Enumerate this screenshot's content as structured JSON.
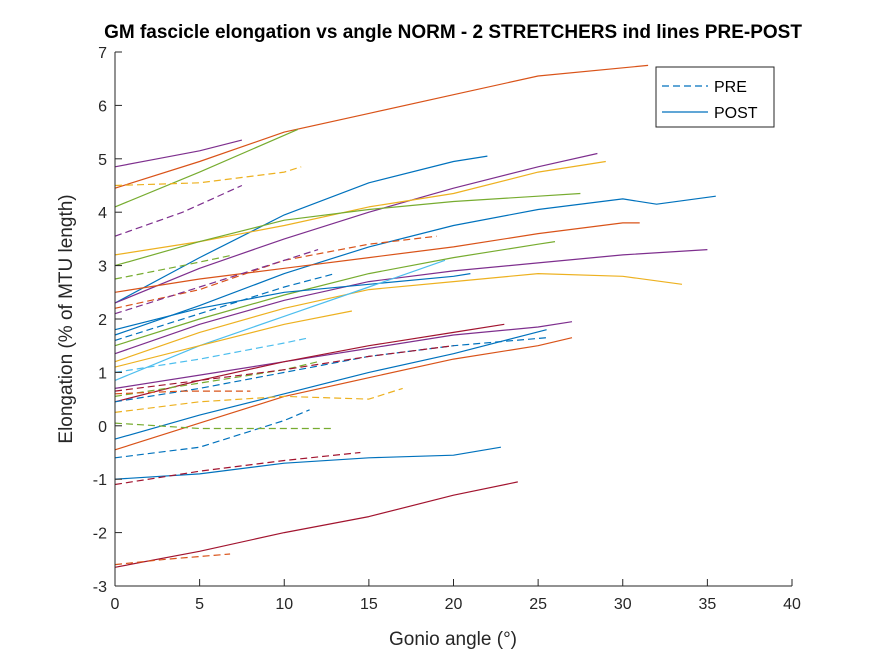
{
  "chart_data": {
    "type": "line",
    "title": "GM fascicle elongation vs angle NORM - 2 STRETCHERS ind lines PRE-POST",
    "xlabel": "Gonio angle (°)",
    "ylabel": "Elongation (% of MTU length)",
    "xlim": [
      0,
      40
    ],
    "ylim": [
      -3,
      7
    ],
    "xticks": [
      "0",
      "5",
      "10",
      "15",
      "20",
      "25",
      "30",
      "35",
      "40"
    ],
    "yticks": [
      "-3",
      "-2",
      "-1",
      "0",
      "1",
      "2",
      "3",
      "4",
      "5",
      "6",
      "7"
    ],
    "grid": false,
    "legend_position": "top-right",
    "legend": [
      {
        "label": "PRE",
        "style": "dashed"
      },
      {
        "label": "POST",
        "style": "solid"
      }
    ],
    "series": [
      {
        "color": "#D95319",
        "style": "solid",
        "x": [
          0,
          5,
          10,
          15,
          20,
          25,
          31.5
        ],
        "y": [
          4.45,
          4.95,
          5.5,
          5.85,
          6.2,
          6.55,
          6.75
        ]
      },
      {
        "color": "#7E2F8E",
        "style": "solid",
        "x": [
          0,
          2.5,
          5,
          7.5
        ],
        "y": [
          4.85,
          5.0,
          5.15,
          5.35
        ]
      },
      {
        "color": "#77AC30",
        "style": "solid",
        "x": [
          0,
          5,
          10.8
        ],
        "y": [
          4.1,
          4.75,
          5.55
        ]
      },
      {
        "color": "#0072BD",
        "style": "solid",
        "x": [
          0,
          5,
          10,
          15,
          20,
          22
        ],
        "y": [
          2.3,
          3.15,
          3.95,
          4.55,
          4.95,
          5.05
        ]
      },
      {
        "color": "#7E2F8E",
        "style": "solid",
        "x": [
          0,
          5,
          10,
          15,
          20,
          25,
          28.5
        ],
        "y": [
          2.3,
          2.95,
          3.5,
          4.0,
          4.45,
          4.85,
          5.1
        ]
      },
      {
        "color": "#EDB120",
        "style": "solid",
        "x": [
          0,
          5,
          10,
          15,
          20,
          25,
          29
        ],
        "y": [
          3.2,
          3.45,
          3.75,
          4.1,
          4.35,
          4.75,
          4.95
        ]
      },
      {
        "color": "#77AC30",
        "style": "solid",
        "x": [
          0,
          5,
          10,
          15,
          20,
          25,
          27.5
        ],
        "y": [
          3.0,
          3.45,
          3.85,
          4.05,
          4.2,
          4.3,
          4.35
        ]
      },
      {
        "color": "#0072BD",
        "style": "solid",
        "x": [
          0,
          5,
          10,
          15,
          20,
          25,
          30,
          32,
          35.5
        ],
        "y": [
          1.7,
          2.25,
          2.85,
          3.35,
          3.75,
          4.05,
          4.25,
          4.15,
          4.3
        ]
      },
      {
        "color": "#D95319",
        "style": "solid",
        "x": [
          0,
          5,
          10,
          15,
          20,
          25,
          30,
          31
        ],
        "y": [
          2.5,
          2.75,
          2.95,
          3.15,
          3.35,
          3.6,
          3.8,
          3.8
        ]
      },
      {
        "color": "#77AC30",
        "style": "solid",
        "x": [
          0,
          5,
          10,
          15,
          20,
          25,
          26
        ],
        "y": [
          1.5,
          2.0,
          2.45,
          2.85,
          3.15,
          3.4,
          3.45
        ]
      },
      {
        "color": "#7E2F8E",
        "style": "solid",
        "x": [
          0,
          5,
          10,
          15,
          20,
          25,
          30,
          35
        ],
        "y": [
          1.35,
          1.9,
          2.35,
          2.7,
          2.9,
          3.05,
          3.2,
          3.3
        ]
      },
      {
        "color": "#0072BD",
        "style": "solid",
        "x": [
          0,
          5,
          10,
          15,
          20,
          21
        ],
        "y": [
          1.8,
          2.2,
          2.5,
          2.65,
          2.8,
          2.85
        ]
      },
      {
        "color": "#EDB120",
        "style": "solid",
        "x": [
          0,
          5,
          10,
          15,
          20,
          25,
          30,
          33.5
        ],
        "y": [
          1.2,
          1.75,
          2.2,
          2.55,
          2.7,
          2.85,
          2.8,
          2.65
        ]
      },
      {
        "color": "#4DBEEE",
        "style": "solid",
        "x": [
          0,
          5,
          10,
          15,
          19.5
        ],
        "y": [
          0.85,
          1.5,
          2.05,
          2.6,
          3.1
        ]
      },
      {
        "color": "#EDB120",
        "style": "solid",
        "x": [
          0,
          5,
          10,
          14
        ],
        "y": [
          1.1,
          1.5,
          1.9,
          2.15
        ]
      },
      {
        "color": "#7E2F8E",
        "style": "solid",
        "x": [
          0,
          5,
          10,
          15,
          20,
          25,
          27
        ],
        "y": [
          0.7,
          0.95,
          1.2,
          1.45,
          1.7,
          1.85,
          1.95
        ]
      },
      {
        "color": "#A2142F",
        "style": "solid",
        "x": [
          0,
          5,
          10,
          15,
          20,
          23
        ],
        "y": [
          0.45,
          0.85,
          1.2,
          1.5,
          1.75,
          1.9
        ]
      },
      {
        "color": "#0072BD",
        "style": "solid",
        "x": [
          0,
          5,
          10,
          15,
          20,
          25.5
        ],
        "y": [
          -0.25,
          0.2,
          0.6,
          1.0,
          1.35,
          1.8
        ]
      },
      {
        "color": "#D95319",
        "style": "solid",
        "x": [
          0,
          5,
          10,
          15,
          20,
          25,
          27
        ],
        "y": [
          -0.45,
          0.05,
          0.55,
          0.9,
          1.25,
          1.5,
          1.65
        ]
      },
      {
        "color": "#0072BD",
        "style": "solid",
        "x": [
          0,
          5,
          10,
          15,
          20,
          22.8
        ],
        "y": [
          -1.0,
          -0.9,
          -0.7,
          -0.6,
          -0.55,
          -0.4
        ]
      },
      {
        "color": "#A2142F",
        "style": "solid",
        "x": [
          0,
          5,
          10,
          15,
          20,
          23.8
        ],
        "y": [
          -2.65,
          -2.35,
          -2.0,
          -1.7,
          -1.3,
          -1.05
        ]
      },
      {
        "color": "#EDB120",
        "style": "dashed",
        "x": [
          0,
          5,
          10,
          11
        ],
        "y": [
          4.5,
          4.55,
          4.75,
          4.85
        ]
      },
      {
        "color": "#7E2F8E",
        "style": "dashed",
        "x": [
          0,
          4,
          7.5
        ],
        "y": [
          3.55,
          4.0,
          4.5
        ]
      },
      {
        "color": "#D95319",
        "style": "dashed",
        "x": [
          0,
          5,
          10,
          15,
          19
        ],
        "y": [
          2.2,
          2.55,
          3.1,
          3.4,
          3.55
        ]
      },
      {
        "color": "#77AC30",
        "style": "dashed",
        "x": [
          0,
          4,
          7
        ],
        "y": [
          2.75,
          3.0,
          3.2
        ]
      },
      {
        "color": "#7E2F8E",
        "style": "dashed",
        "x": [
          0,
          5,
          10,
          12
        ],
        "y": [
          2.1,
          2.6,
          3.1,
          3.3
        ]
      },
      {
        "color": "#0072BD",
        "style": "dashed",
        "x": [
          0,
          5,
          10,
          13
        ],
        "y": [
          1.6,
          2.1,
          2.6,
          2.85
        ]
      },
      {
        "color": "#4DBEEE",
        "style": "dashed",
        "x": [
          0,
          5,
          10,
          11.5
        ],
        "y": [
          1.0,
          1.25,
          1.55,
          1.65
        ]
      },
      {
        "color": "#77AC30",
        "style": "dashed",
        "x": [
          0,
          5,
          10,
          12
        ],
        "y": [
          0.55,
          0.8,
          1.05,
          1.2
        ]
      },
      {
        "color": "#0072BD",
        "style": "dashed",
        "x": [
          0,
          5,
          10,
          15,
          20,
          25.5
        ],
        "y": [
          0.45,
          0.7,
          1.0,
          1.3,
          1.5,
          1.65
        ]
      },
      {
        "color": "#A2142F",
        "style": "dashed",
        "x": [
          0,
          5,
          10,
          15,
          20
        ],
        "y": [
          0.65,
          0.85,
          1.05,
          1.3,
          1.5
        ]
      },
      {
        "color": "#EDB120",
        "style": "dashed",
        "x": [
          0,
          5,
          10,
          15,
          17
        ],
        "y": [
          0.25,
          0.45,
          0.55,
          0.5,
          0.7
        ]
      },
      {
        "color": "#D95319",
        "style": "dashed",
        "x": [
          0,
          4,
          8
        ],
        "y": [
          0.6,
          0.65,
          0.65
        ]
      },
      {
        "color": "#0072BD",
        "style": "dashed",
        "x": [
          0,
          5,
          10,
          11.5
        ],
        "y": [
          -0.6,
          -0.4,
          0.1,
          0.3
        ]
      },
      {
        "color": "#77AC30",
        "style": "dashed",
        "x": [
          0,
          5,
          10,
          12.8
        ],
        "y": [
          0.05,
          -0.05,
          -0.05,
          -0.05
        ]
      },
      {
        "color": "#A2142F",
        "style": "dashed",
        "x": [
          0,
          5,
          10,
          14.5
        ],
        "y": [
          -1.1,
          -0.85,
          -0.65,
          -0.5
        ]
      },
      {
        "color": "#D95319",
        "style": "dashed",
        "x": [
          0,
          3,
          6.8
        ],
        "y": [
          -2.6,
          -2.5,
          -2.4
        ]
      }
    ]
  }
}
